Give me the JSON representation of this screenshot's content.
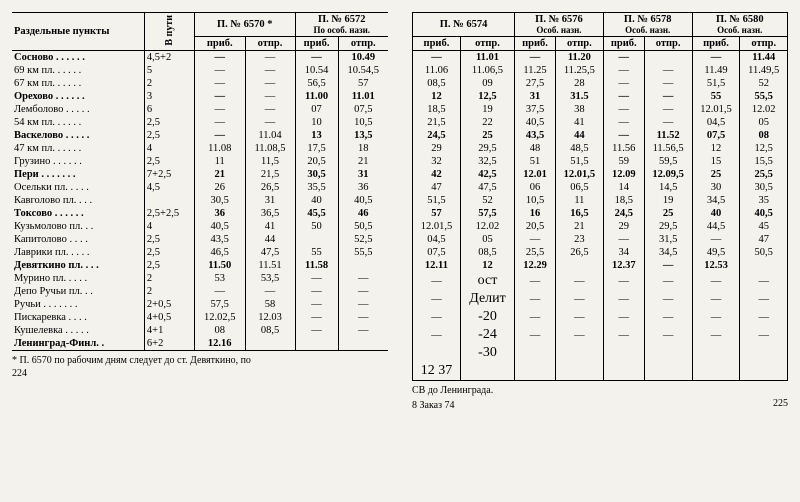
{
  "left": {
    "col_sections": "Раздельные пункты",
    "col_vputi": "В пути",
    "trains": [
      {
        "num": "П. № 6570 *",
        "sub": ""
      },
      {
        "num": "П. № 6572",
        "sub": "По особ. нази."
      }
    ],
    "col_prib": "приб.",
    "col_otpr": "отпр.",
    "rows": [
      {
        "st": "Сосново . . . . . .",
        "b": true,
        "vp": "4,5+2",
        "c": [
          "—",
          "—",
          "—",
          "10.49"
        ]
      },
      {
        "st": "69 км пл. . . . . .",
        "vp": "5",
        "c": [
          "—",
          "—",
          "10.54",
          "10.54,5"
        ]
      },
      {
        "st": "67 км пл. . . . . .",
        "vp": "2",
        "c": [
          "—",
          "—",
          "56,5",
          "57"
        ]
      },
      {
        "st": "Орехово . . . . . .",
        "b": true,
        "vp": "3",
        "c": [
          "—",
          "—",
          "11.00",
          "11.01"
        ]
      },
      {
        "st": "Лемболово . . . . .",
        "vp": "6",
        "c": [
          "—",
          "—",
          "07",
          "07,5"
        ]
      },
      {
        "st": "54 км пл. . . . . .",
        "vp": "2,5",
        "c": [
          "—",
          "—",
          "10",
          "10,5"
        ]
      },
      {
        "st": "Васкелово . . . . .",
        "b": true,
        "vp": "2,5",
        "c": [
          "—",
          "11.04",
          "13",
          "13,5"
        ]
      },
      {
        "st": "47 км пл. . . . . .",
        "vp": "4",
        "c": [
          "11.08",
          "11.08,5",
          "17,5",
          "18"
        ]
      },
      {
        "st": "Грузино . . . . . .",
        "vp": "2,5",
        "c": [
          "11",
          "11,5",
          "20,5",
          "21"
        ]
      },
      {
        "st": "Пери  . . . . . . .",
        "b": true,
        "vp": "7+2,5",
        "c": [
          "21",
          "21,5",
          "30,5",
          "31"
        ]
      },
      {
        "st": "Осельки пл. . . . .",
        "vp": "4,5",
        "c": [
          "26",
          "26,5",
          "35,5",
          "36"
        ]
      },
      {
        "st": "Кавголово пл. . . .",
        "vp": "",
        "c": [
          "30,5",
          "31",
          "40",
          "40,5"
        ]
      },
      {
        "st": "Токсово . . . . . .",
        "b": true,
        "vp": "2,5+2,5",
        "c": [
          "36",
          "36,5",
          "45,5",
          "46"
        ]
      },
      {
        "st": "Кузьмолово пл. . .",
        "vp": "4",
        "c": [
          "40,5",
          "41",
          "50",
          "50,5"
        ]
      },
      {
        "st": "Капитолово . . . .",
        "vp": "2,5",
        "c": [
          "43,5",
          "44",
          "",
          "52,5"
        ]
      },
      {
        "st": "Лаврики пл. . . . .",
        "vp": "2,5",
        "c": [
          "46,5",
          "47,5",
          "55",
          "55,5"
        ]
      },
      {
        "st": "Девяткино пл. . . .",
        "b": true,
        "vp": "2,5",
        "c": [
          "11.50",
          "11.51",
          "11.58",
          ""
        ]
      },
      {
        "st": "Мурино пл. . . . .",
        "vp": "2",
        "c": [
          "53",
          "53,5",
          "—",
          "—"
        ]
      },
      {
        "st": "Депо Ручьи пл. . .",
        "vp": "2",
        "c": [
          "—",
          "—",
          "—",
          "—"
        ]
      },
      {
        "st": "Ручьи . . . . . . .",
        "vp": "2+0,5",
        "c": [
          "57,5",
          "58",
          "—",
          "—"
        ]
      },
      {
        "st": "Пискаревка . . . .",
        "vp": "4+0,5",
        "c": [
          "12.02,5",
          "12.03",
          "—",
          "—"
        ]
      },
      {
        "st": "Кушелевка . . . . .",
        "vp": "4+1",
        "c": [
          "08",
          "08,5",
          "—",
          "—"
        ]
      },
      {
        "st": "Ленинград-Финл. .",
        "b": true,
        "vp": "6+2",
        "c": [
          "12.16",
          "",
          "",
          ""
        ]
      }
    ],
    "footnote": "* П. 6570 по рабочим дням следует до ст. Девяткино, по",
    "page": "224"
  },
  "right": {
    "trains": [
      {
        "num": "П. № 6574",
        "sub": ""
      },
      {
        "num": "П. № 6576",
        "sub": "Особ. назн."
      },
      {
        "num": "П. № 6578",
        "sub": "Особ. назн."
      },
      {
        "num": "П. № 6580",
        "sub": "Особ. назн."
      }
    ],
    "col_prib": "приб.",
    "col_otpr": "отпр.",
    "rows": [
      {
        "c": [
          "—",
          "11.01",
          "—",
          "11.20",
          "—",
          "",
          "—",
          "11.44"
        ],
        "b": true
      },
      {
        "c": [
          "11.06",
          "11.06,5",
          "11.25",
          "11.25,5",
          "—",
          "—",
          "11.49",
          "11.49,5"
        ]
      },
      {
        "c": [
          "08,5",
          "09",
          "27,5",
          "28",
          "—",
          "—",
          "51,5",
          "52"
        ]
      },
      {
        "c": [
          "12",
          "12,5",
          "31",
          "31.5",
          "—",
          "—",
          "55",
          "55,5"
        ],
        "b": true
      },
      {
        "c": [
          "18,5",
          "19",
          "37,5",
          "38",
          "—",
          "—",
          "12.01,5",
          "12.02"
        ]
      },
      {
        "c": [
          "21,5",
          "22",
          "40,5",
          "41",
          "—",
          "—",
          "04,5",
          "05"
        ]
      },
      {
        "c": [
          "24,5",
          "25",
          "43,5",
          "44",
          "—",
          "11.52",
          "07,5",
          "08"
        ],
        "b": true
      },
      {
        "c": [
          "29",
          "29,5",
          "48",
          "48,5",
          "11.56",
          "11.56,5",
          "12",
          "12,5"
        ]
      },
      {
        "c": [
          "32",
          "32,5",
          "51",
          "51,5",
          "59",
          "59,5",
          "15",
          "15,5"
        ]
      },
      {
        "c": [
          "42",
          "42,5",
          "12.01",
          "12.01,5",
          "12.09",
          "12.09,5",
          "25",
          "25,5"
        ],
        "b": true
      },
      {
        "c": [
          "47",
          "47,5",
          "06",
          "06,5",
          "14",
          "14,5",
          "30",
          "30,5"
        ]
      },
      {
        "c": [
          "51,5",
          "52",
          "10,5",
          "11",
          "18,5",
          "19",
          "34,5",
          "35"
        ]
      },
      {
        "c": [
          "57",
          "57,5",
          "16",
          "16,5",
          "24,5",
          "25",
          "40",
          "40,5"
        ],
        "b": true
      },
      {
        "c": [
          "12.01,5",
          "12.02",
          "20,5",
          "21",
          "29",
          "29,5",
          "44,5",
          "45"
        ]
      },
      {
        "c": [
          "04,5",
          "05",
          "—",
          "23",
          "—",
          "31,5",
          "—",
          "47"
        ]
      },
      {
        "c": [
          "07,5",
          "08,5",
          "25,5",
          "26,5",
          "34",
          "34,5",
          "49,5",
          "50,5"
        ]
      },
      {
        "c": [
          "12.11",
          "12",
          "12.29",
          "",
          "12.37",
          "—",
          "12.53",
          ""
        ],
        "b": true
      },
      {
        "c": [
          "—",
          "ост",
          "—",
          "—",
          "—",
          "—",
          "—",
          "—"
        ]
      },
      {
        "c": [
          "—",
          "Делит",
          "—",
          "—",
          "—",
          "—",
          "—",
          "—"
        ]
      },
      {
        "c": [
          "—",
          "-20",
          "—",
          "—",
          "—",
          "—",
          "—",
          "—"
        ]
      },
      {
        "c": [
          "—",
          "-24",
          "—",
          "—",
          "—",
          "—",
          "—",
          "—"
        ]
      },
      {
        "c": [
          "",
          "-30",
          "",
          "",
          "",
          "",
          "",
          ""
        ]
      },
      {
        "c": [
          "12 37",
          "",
          "",
          "",
          "",
          "",
          "",
          ""
        ]
      }
    ],
    "foot1": "СВ до Ленинграда.",
    "foot2": "8  Заказ 74",
    "page": "225"
  }
}
